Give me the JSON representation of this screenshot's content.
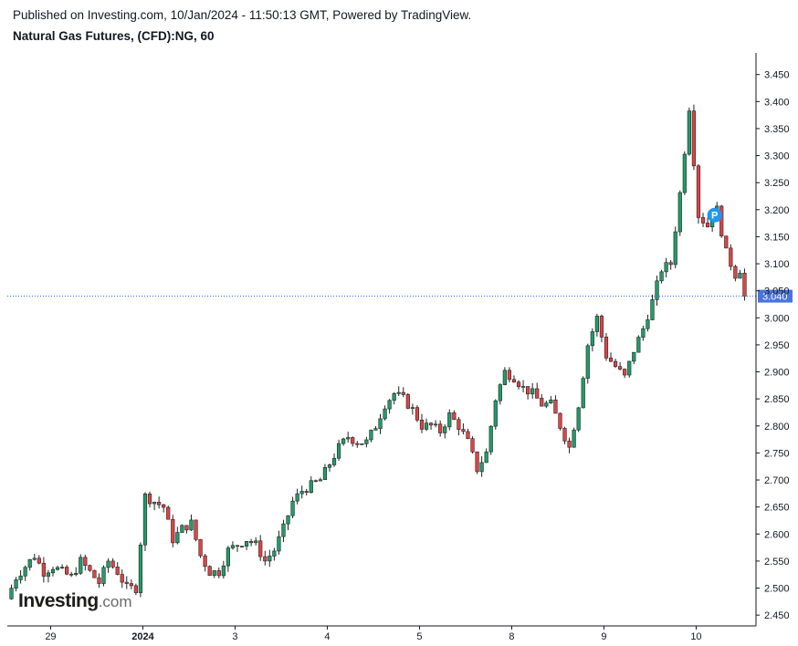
{
  "header": {
    "published": "Published on Investing.com, 10/Jan/2024 - 11:50:13 GMT, Powered by TradingView.",
    "instrument": "Natural Gas Futures, (CFD):NG, 60"
  },
  "logo": {
    "main": "Investing",
    "suffix": ".com"
  },
  "colors": {
    "up": "#1f9d6b",
    "down": "#e04346",
    "wick": "#222222",
    "last_price_line": "#2962ff",
    "last_price_tag": "#4a74d9",
    "marker": "#2196f3",
    "axis": "#131722"
  },
  "chart_data": {
    "type": "candlestick",
    "title": "Natural Gas Futures, (CFD):NG, 60",
    "ylim": [
      2.43,
      3.49
    ],
    "yticks": [
      "3.450",
      "3.400",
      "3.350",
      "3.300",
      "3.250",
      "3.200",
      "3.150",
      "3.100",
      "3.050",
      "3.000",
      "2.950",
      "2.900",
      "2.850",
      "2.800",
      "2.750",
      "2.700",
      "2.650",
      "2.600",
      "2.550",
      "2.500",
      "2.450"
    ],
    "xticks": [
      {
        "label": "29",
        "bar": 4.5,
        "bold": false
      },
      {
        "label": "2024",
        "bar": 14.5,
        "bold": true
      },
      {
        "label": "3",
        "bar": 24.5,
        "bold": false
      },
      {
        "label": "4",
        "bar": 34.5,
        "bold": false
      },
      {
        "label": "5",
        "bar": 44.5,
        "bold": false
      },
      {
        "label": "8",
        "bar": 54.5,
        "bold": false
      },
      {
        "label": "9",
        "bar": 64.5,
        "bold": false
      },
      {
        "label": "10",
        "bar": 74.5,
        "bold": false
      }
    ],
    "bar_count": 80,
    "last_price": "3.040",
    "last_price_value": 3.04,
    "marker": {
      "label": "P",
      "bar": 76.5,
      "value": 3.19
    },
    "anchors": [
      [
        0,
        2.48
      ],
      [
        1,
        2.52
      ],
      [
        2,
        2.54
      ],
      [
        3,
        2.56
      ],
      [
        4,
        2.53
      ],
      [
        5,
        2.54
      ],
      [
        6,
        2.53
      ],
      [
        7,
        2.52
      ],
      [
        8,
        2.55
      ],
      [
        9,
        2.53
      ],
      [
        10,
        2.51
      ],
      [
        11,
        2.55
      ],
      [
        12,
        2.53
      ],
      [
        13,
        2.5
      ],
      [
        14,
        2.5
      ],
      [
        15,
        2.67
      ],
      [
        16,
        2.66
      ],
      [
        17,
        2.65
      ],
      [
        18,
        2.59
      ],
      [
        19,
        2.61
      ],
      [
        20,
        2.62
      ],
      [
        21,
        2.56
      ],
      [
        22,
        2.53
      ],
      [
        23,
        2.53
      ],
      [
        24,
        2.57
      ],
      [
        25,
        2.58
      ],
      [
        26,
        2.59
      ],
      [
        27,
        2.58
      ],
      [
        28,
        2.55
      ],
      [
        29,
        2.57
      ],
      [
        30,
        2.61
      ],
      [
        31,
        2.66
      ],
      [
        32,
        2.68
      ],
      [
        33,
        2.69
      ],
      [
        34,
        2.7
      ],
      [
        35,
        2.73
      ],
      [
        36,
        2.76
      ],
      [
        37,
        2.78
      ],
      [
        38,
        2.77
      ],
      [
        39,
        2.77
      ],
      [
        40,
        2.8
      ],
      [
        41,
        2.84
      ],
      [
        42,
        2.86
      ],
      [
        43,
        2.85
      ],
      [
        44,
        2.83
      ],
      [
        45,
        2.8
      ],
      [
        46,
        2.8
      ],
      [
        47,
        2.79
      ],
      [
        48,
        2.82
      ],
      [
        49,
        2.8
      ],
      [
        50,
        2.77
      ],
      [
        51,
        2.72
      ],
      [
        52,
        2.75
      ],
      [
        53,
        2.85
      ],
      [
        54,
        2.9
      ],
      [
        55,
        2.89
      ],
      [
        56,
        2.87
      ],
      [
        57,
        2.86
      ],
      [
        58,
        2.84
      ],
      [
        59,
        2.84
      ],
      [
        60,
        2.8
      ],
      [
        61,
        2.76
      ],
      [
        62,
        2.84
      ],
      [
        63,
        2.95
      ],
      [
        64,
        3.0
      ],
      [
        65,
        2.93
      ],
      [
        66,
        2.91
      ],
      [
        67,
        2.89
      ],
      [
        68,
        2.94
      ],
      [
        69,
        2.98
      ],
      [
        70,
        3.03
      ],
      [
        71,
        3.09
      ],
      [
        72,
        3.1
      ],
      [
        73,
        3.23
      ],
      [
        74,
        3.39
      ],
      [
        75,
        3.19
      ],
      [
        76,
        3.17
      ],
      [
        77,
        3.2
      ],
      [
        78,
        3.12
      ],
      [
        79,
        3.08
      ],
      [
        80,
        3.1
      ],
      [
        81,
        3.04
      ]
    ]
  }
}
